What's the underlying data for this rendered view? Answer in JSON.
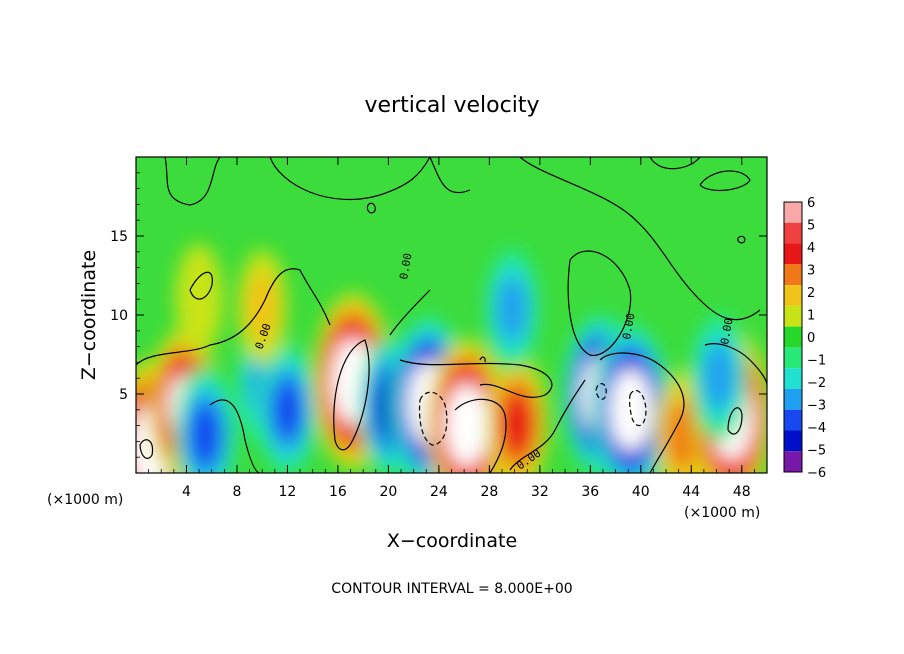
{
  "chart_data": {
    "type": "heatmap",
    "title": "vertical velocity",
    "xlabel": "X−coordinate",
    "ylabel": "Z−coordinate",
    "x_unit_left": "(×1000 m)",
    "x_unit_right": "(×1000 m)",
    "xlim": [
      0,
      50
    ],
    "ylim": [
      0,
      20
    ],
    "x_ticks": [
      {
        "v": 4,
        "label": "4"
      },
      {
        "v": 8,
        "label": "8"
      },
      {
        "v": 12,
        "label": "12"
      },
      {
        "v": 16,
        "label": "16"
      },
      {
        "v": 20,
        "label": "20"
      },
      {
        "v": 24,
        "label": "24"
      },
      {
        "v": 28,
        "label": "28"
      },
      {
        "v": 32,
        "label": "32"
      },
      {
        "v": 36,
        "label": "36"
      },
      {
        "v": 40,
        "label": "40"
      },
      {
        "v": 44,
        "label": "44"
      },
      {
        "v": 48,
        "label": "48"
      }
    ],
    "y_ticks": [
      {
        "v": 5,
        "label": "5"
      },
      {
        "v": 10,
        "label": "10"
      },
      {
        "v": 15,
        "label": "15"
      }
    ],
    "colorbar": {
      "levels": [
        6,
        5,
        4,
        3,
        2,
        1,
        0,
        -1,
        -2,
        -3,
        -4,
        -5,
        -6
      ],
      "labels": [
        "6",
        "5",
        "4",
        "3",
        "2",
        "1",
        "0",
        "−1",
        "−2",
        "−3",
        "−4",
        "−5",
        "−6"
      ],
      "colors": [
        "#f7a8a8",
        "#f04040",
        "#e81818",
        "#f07818",
        "#f0c418",
        "#c8e418",
        "#28d828",
        "#28e878",
        "#20e0d0",
        "#20a0f0",
        "#1848f0",
        "#0010c8",
        "#7818a8"
      ]
    },
    "contour_labels": [
      "0.00",
      "0.00",
      "0.00",
      "0.00",
      "0.00",
      "0.00"
    ],
    "footer": "CONTOUR INTERVAL = 8.000E+00",
    "features": [
      {
        "x": 1.0,
        "z": 2.5,
        "value": -5
      },
      {
        "x": 1.2,
        "z": 1.6,
        "value": 12
      },
      {
        "x": 3.8,
        "z": 4.2,
        "value": 6
      },
      {
        "x": 5.5,
        "z": 2.4,
        "value": -4
      },
      {
        "x": 10.2,
        "z": 5.6,
        "value": -3
      },
      {
        "x": 12.0,
        "z": 4.0,
        "value": -3.5
      },
      {
        "x": 17.2,
        "z": 5.8,
        "value": 14
      },
      {
        "x": 20.2,
        "z": 4.2,
        "value": -4.5
      },
      {
        "x": 23.2,
        "z": 4.4,
        "value": -9
      },
      {
        "x": 26.2,
        "z": 3.0,
        "value": 8
      },
      {
        "x": 30.2,
        "z": 3.1,
        "value": 4
      },
      {
        "x": 29.8,
        "z": 10.4,
        "value": -2.5
      },
      {
        "x": 36.8,
        "z": 4.9,
        "value": -7
      },
      {
        "x": 39.2,
        "z": 4.0,
        "value": -8
      },
      {
        "x": 43.4,
        "z": 2.4,
        "value": 3
      },
      {
        "x": 47.2,
        "z": 3.5,
        "value": 9
      },
      {
        "x": 46.2,
        "z": 6.1,
        "value": -3
      },
      {
        "x": 10.0,
        "z": 10.5,
        "value": 1.2
      },
      {
        "x": 5.0,
        "z": 11.0,
        "value": 0.8
      }
    ]
  }
}
